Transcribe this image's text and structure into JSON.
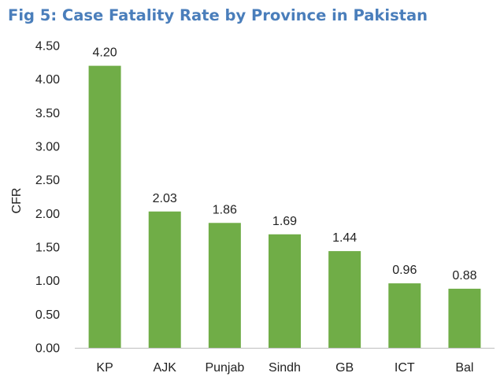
{
  "chart_data": {
    "type": "bar",
    "title": "Fig 5: Case Fatality Rate by Province in Pakistan",
    "xlabel": "",
    "ylabel": "CFR",
    "categories": [
      "KP",
      "AJK",
      "Punjab",
      "Sindh",
      "GB",
      "ICT",
      "Bal"
    ],
    "values": [
      4.2,
      2.03,
      1.86,
      1.69,
      1.44,
      0.96,
      0.88
    ],
    "data_labels": [
      "4.20",
      "2.03",
      "1.86",
      "1.69",
      "1.44",
      "0.96",
      "0.88"
    ],
    "ylim": [
      0,
      4.5
    ],
    "yticks": [
      "0.00",
      "0.50",
      "1.00",
      "1.50",
      "2.00",
      "2.50",
      "3.00",
      "3.50",
      "4.00",
      "4.50"
    ],
    "grid": false,
    "bar_color": "#70AD47",
    "title_color": "#4A7EBB"
  }
}
